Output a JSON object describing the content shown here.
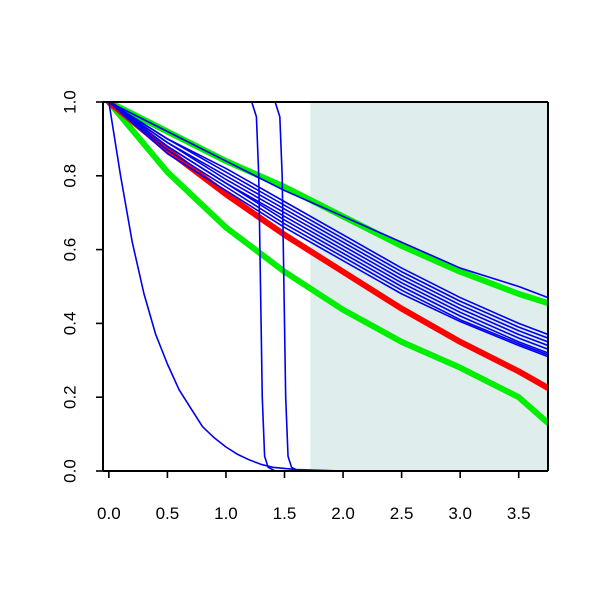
{
  "chart_data": {
    "type": "line",
    "title": "",
    "xlabel": "",
    "ylabel": "",
    "xlim": [
      -0.05,
      3.75
    ],
    "ylim": [
      0,
      1
    ],
    "x_ticks": [
      "0.0",
      "0.5",
      "1.0",
      "1.5",
      "2.0",
      "2.5",
      "3.0",
      "3.5"
    ],
    "y_ticks": [
      "0.0",
      "0.2",
      "0.4",
      "0.6",
      "0.8",
      "1.0"
    ],
    "grid": false,
    "legend": "none",
    "shaded_region": {
      "x_from": 1.72,
      "x_to": 3.75,
      "color": "#e0eded"
    },
    "series": [
      {
        "color": "#00ee00",
        "width": 6,
        "points": [
          [
            0.0,
            1.0
          ],
          [
            0.5,
            0.81
          ],
          [
            1.0,
            0.66
          ],
          [
            1.5,
            0.54
          ],
          [
            2.0,
            0.437
          ],
          [
            2.5,
            0.35
          ],
          [
            3.0,
            0.28
          ],
          [
            3.5,
            0.2
          ],
          [
            3.75,
            0.13
          ]
        ]
      },
      {
        "color": "#00ee00",
        "width": 6,
        "points": [
          [
            0.0,
            1.0
          ],
          [
            0.5,
            0.92
          ],
          [
            1.0,
            0.84
          ],
          [
            1.5,
            0.77
          ],
          [
            2.0,
            0.69
          ],
          [
            2.5,
            0.61
          ],
          [
            3.0,
            0.54
          ],
          [
            3.5,
            0.48
          ],
          [
            3.75,
            0.455
          ]
        ]
      },
      {
        "color": "#ff0000",
        "width": 6,
        "points": [
          [
            0.0,
            1.0
          ],
          [
            0.5,
            0.87
          ],
          [
            1.0,
            0.75
          ],
          [
            1.5,
            0.64
          ],
          [
            2.0,
            0.54
          ],
          [
            2.5,
            0.44
          ],
          [
            3.0,
            0.35
          ],
          [
            3.5,
            0.27
          ],
          [
            3.75,
            0.225
          ]
        ]
      },
      {
        "color": "#0000ee",
        "width": 1.6,
        "points": [
          [
            0.0,
            1.0
          ],
          [
            0.5,
            0.92
          ],
          [
            1.0,
            0.84
          ],
          [
            1.5,
            0.76
          ],
          [
            2.0,
            0.69
          ],
          [
            2.5,
            0.62
          ],
          [
            3.0,
            0.55
          ],
          [
            3.5,
            0.5
          ],
          [
            3.75,
            0.47
          ]
        ]
      },
      {
        "color": "#0000ee",
        "width": 1.6,
        "points": [
          [
            0.0,
            1.0
          ],
          [
            0.5,
            0.9
          ],
          [
            1.0,
            0.82
          ],
          [
            1.5,
            0.73
          ],
          [
            2.0,
            0.64
          ],
          [
            2.5,
            0.55
          ],
          [
            3.0,
            0.47
          ],
          [
            3.5,
            0.4
          ],
          [
            3.75,
            0.37
          ]
        ]
      },
      {
        "color": "#0000ee",
        "width": 1.6,
        "points": [
          [
            0.0,
            1.0
          ],
          [
            0.5,
            0.9
          ],
          [
            1.0,
            0.81
          ],
          [
            1.5,
            0.72
          ],
          [
            2.0,
            0.63
          ],
          [
            2.5,
            0.54
          ],
          [
            3.0,
            0.46
          ],
          [
            3.5,
            0.39
          ],
          [
            3.75,
            0.36
          ]
        ]
      },
      {
        "color": "#0000ee",
        "width": 1.6,
        "points": [
          [
            0.0,
            1.0
          ],
          [
            0.5,
            0.89
          ],
          [
            1.0,
            0.8
          ],
          [
            1.5,
            0.71
          ],
          [
            2.0,
            0.62
          ],
          [
            2.5,
            0.53
          ],
          [
            3.0,
            0.45
          ],
          [
            3.5,
            0.38
          ],
          [
            3.75,
            0.35
          ]
        ]
      },
      {
        "color": "#0000ee",
        "width": 1.6,
        "points": [
          [
            0.0,
            1.0
          ],
          [
            0.5,
            0.89
          ],
          [
            1.0,
            0.79
          ],
          [
            1.5,
            0.7
          ],
          [
            2.0,
            0.61
          ],
          [
            2.5,
            0.52
          ],
          [
            3.0,
            0.44
          ],
          [
            3.5,
            0.37
          ],
          [
            3.75,
            0.34
          ]
        ]
      },
      {
        "color": "#0000ee",
        "width": 1.6,
        "points": [
          [
            0.0,
            1.0
          ],
          [
            0.5,
            0.88
          ],
          [
            1.0,
            0.78
          ],
          [
            1.5,
            0.69
          ],
          [
            2.0,
            0.6
          ],
          [
            2.5,
            0.51
          ],
          [
            3.0,
            0.43
          ],
          [
            3.5,
            0.36
          ],
          [
            3.75,
            0.33
          ]
        ]
      },
      {
        "color": "#0000ee",
        "width": 1.6,
        "points": [
          [
            0.0,
            1.0
          ],
          [
            0.5,
            0.88
          ],
          [
            1.0,
            0.78
          ],
          [
            1.5,
            0.68
          ],
          [
            2.0,
            0.59
          ],
          [
            2.5,
            0.5
          ],
          [
            3.0,
            0.42
          ],
          [
            3.5,
            0.35
          ],
          [
            3.75,
            0.32
          ]
        ]
      },
      {
        "color": "#0000ee",
        "width": 1.6,
        "points": [
          [
            0.0,
            1.0
          ],
          [
            0.5,
            0.87
          ],
          [
            1.0,
            0.77
          ],
          [
            1.5,
            0.67
          ],
          [
            2.0,
            0.58
          ],
          [
            2.5,
            0.49
          ],
          [
            3.0,
            0.41
          ],
          [
            3.5,
            0.345
          ],
          [
            3.75,
            0.315
          ]
        ]
      },
      {
        "color": "#0000ee",
        "width": 1.6,
        "points": [
          [
            0.0,
            1.0
          ],
          [
            0.5,
            0.86
          ],
          [
            1.0,
            0.76
          ],
          [
            1.5,
            0.66
          ],
          [
            2.0,
            0.57
          ],
          [
            2.5,
            0.48
          ],
          [
            3.0,
            0.405
          ],
          [
            3.5,
            0.34
          ],
          [
            3.75,
            0.31
          ]
        ]
      },
      {
        "color": "#0000ee",
        "width": 1.6,
        "points": [
          [
            0.0,
            1.0
          ],
          [
            0.1,
            0.8
          ],
          [
            0.2,
            0.62
          ],
          [
            0.3,
            0.48
          ],
          [
            0.4,
            0.37
          ],
          [
            0.5,
            0.29
          ],
          [
            0.6,
            0.22
          ],
          [
            0.7,
            0.17
          ],
          [
            0.8,
            0.12
          ],
          [
            0.9,
            0.09
          ],
          [
            1.0,
            0.065
          ],
          [
            1.1,
            0.045
          ],
          [
            1.2,
            0.03
          ],
          [
            1.3,
            0.018
          ],
          [
            1.4,
            0.01
          ],
          [
            1.6,
            0.004
          ],
          [
            2.0,
            0.0
          ],
          [
            3.75,
            0.0
          ]
        ]
      },
      {
        "color": "#0000ee",
        "width": 1.6,
        "points": [
          [
            0.0,
            1.0
          ],
          [
            1.22,
            1.0
          ],
          [
            1.26,
            0.96
          ],
          [
            1.28,
            0.8
          ],
          [
            1.295,
            0.5
          ],
          [
            1.31,
            0.2
          ],
          [
            1.33,
            0.04
          ],
          [
            1.36,
            0.01
          ],
          [
            1.42,
            0.0
          ],
          [
            3.75,
            0.0
          ]
        ]
      },
      {
        "color": "#0000ee",
        "width": 1.6,
        "points": [
          [
            0.0,
            1.0
          ],
          [
            1.42,
            1.0
          ],
          [
            1.46,
            0.96
          ],
          [
            1.48,
            0.8
          ],
          [
            1.495,
            0.5
          ],
          [
            1.51,
            0.2
          ],
          [
            1.53,
            0.04
          ],
          [
            1.56,
            0.01
          ],
          [
            1.62,
            0.0
          ],
          [
            3.75,
            0.0
          ]
        ]
      }
    ]
  }
}
